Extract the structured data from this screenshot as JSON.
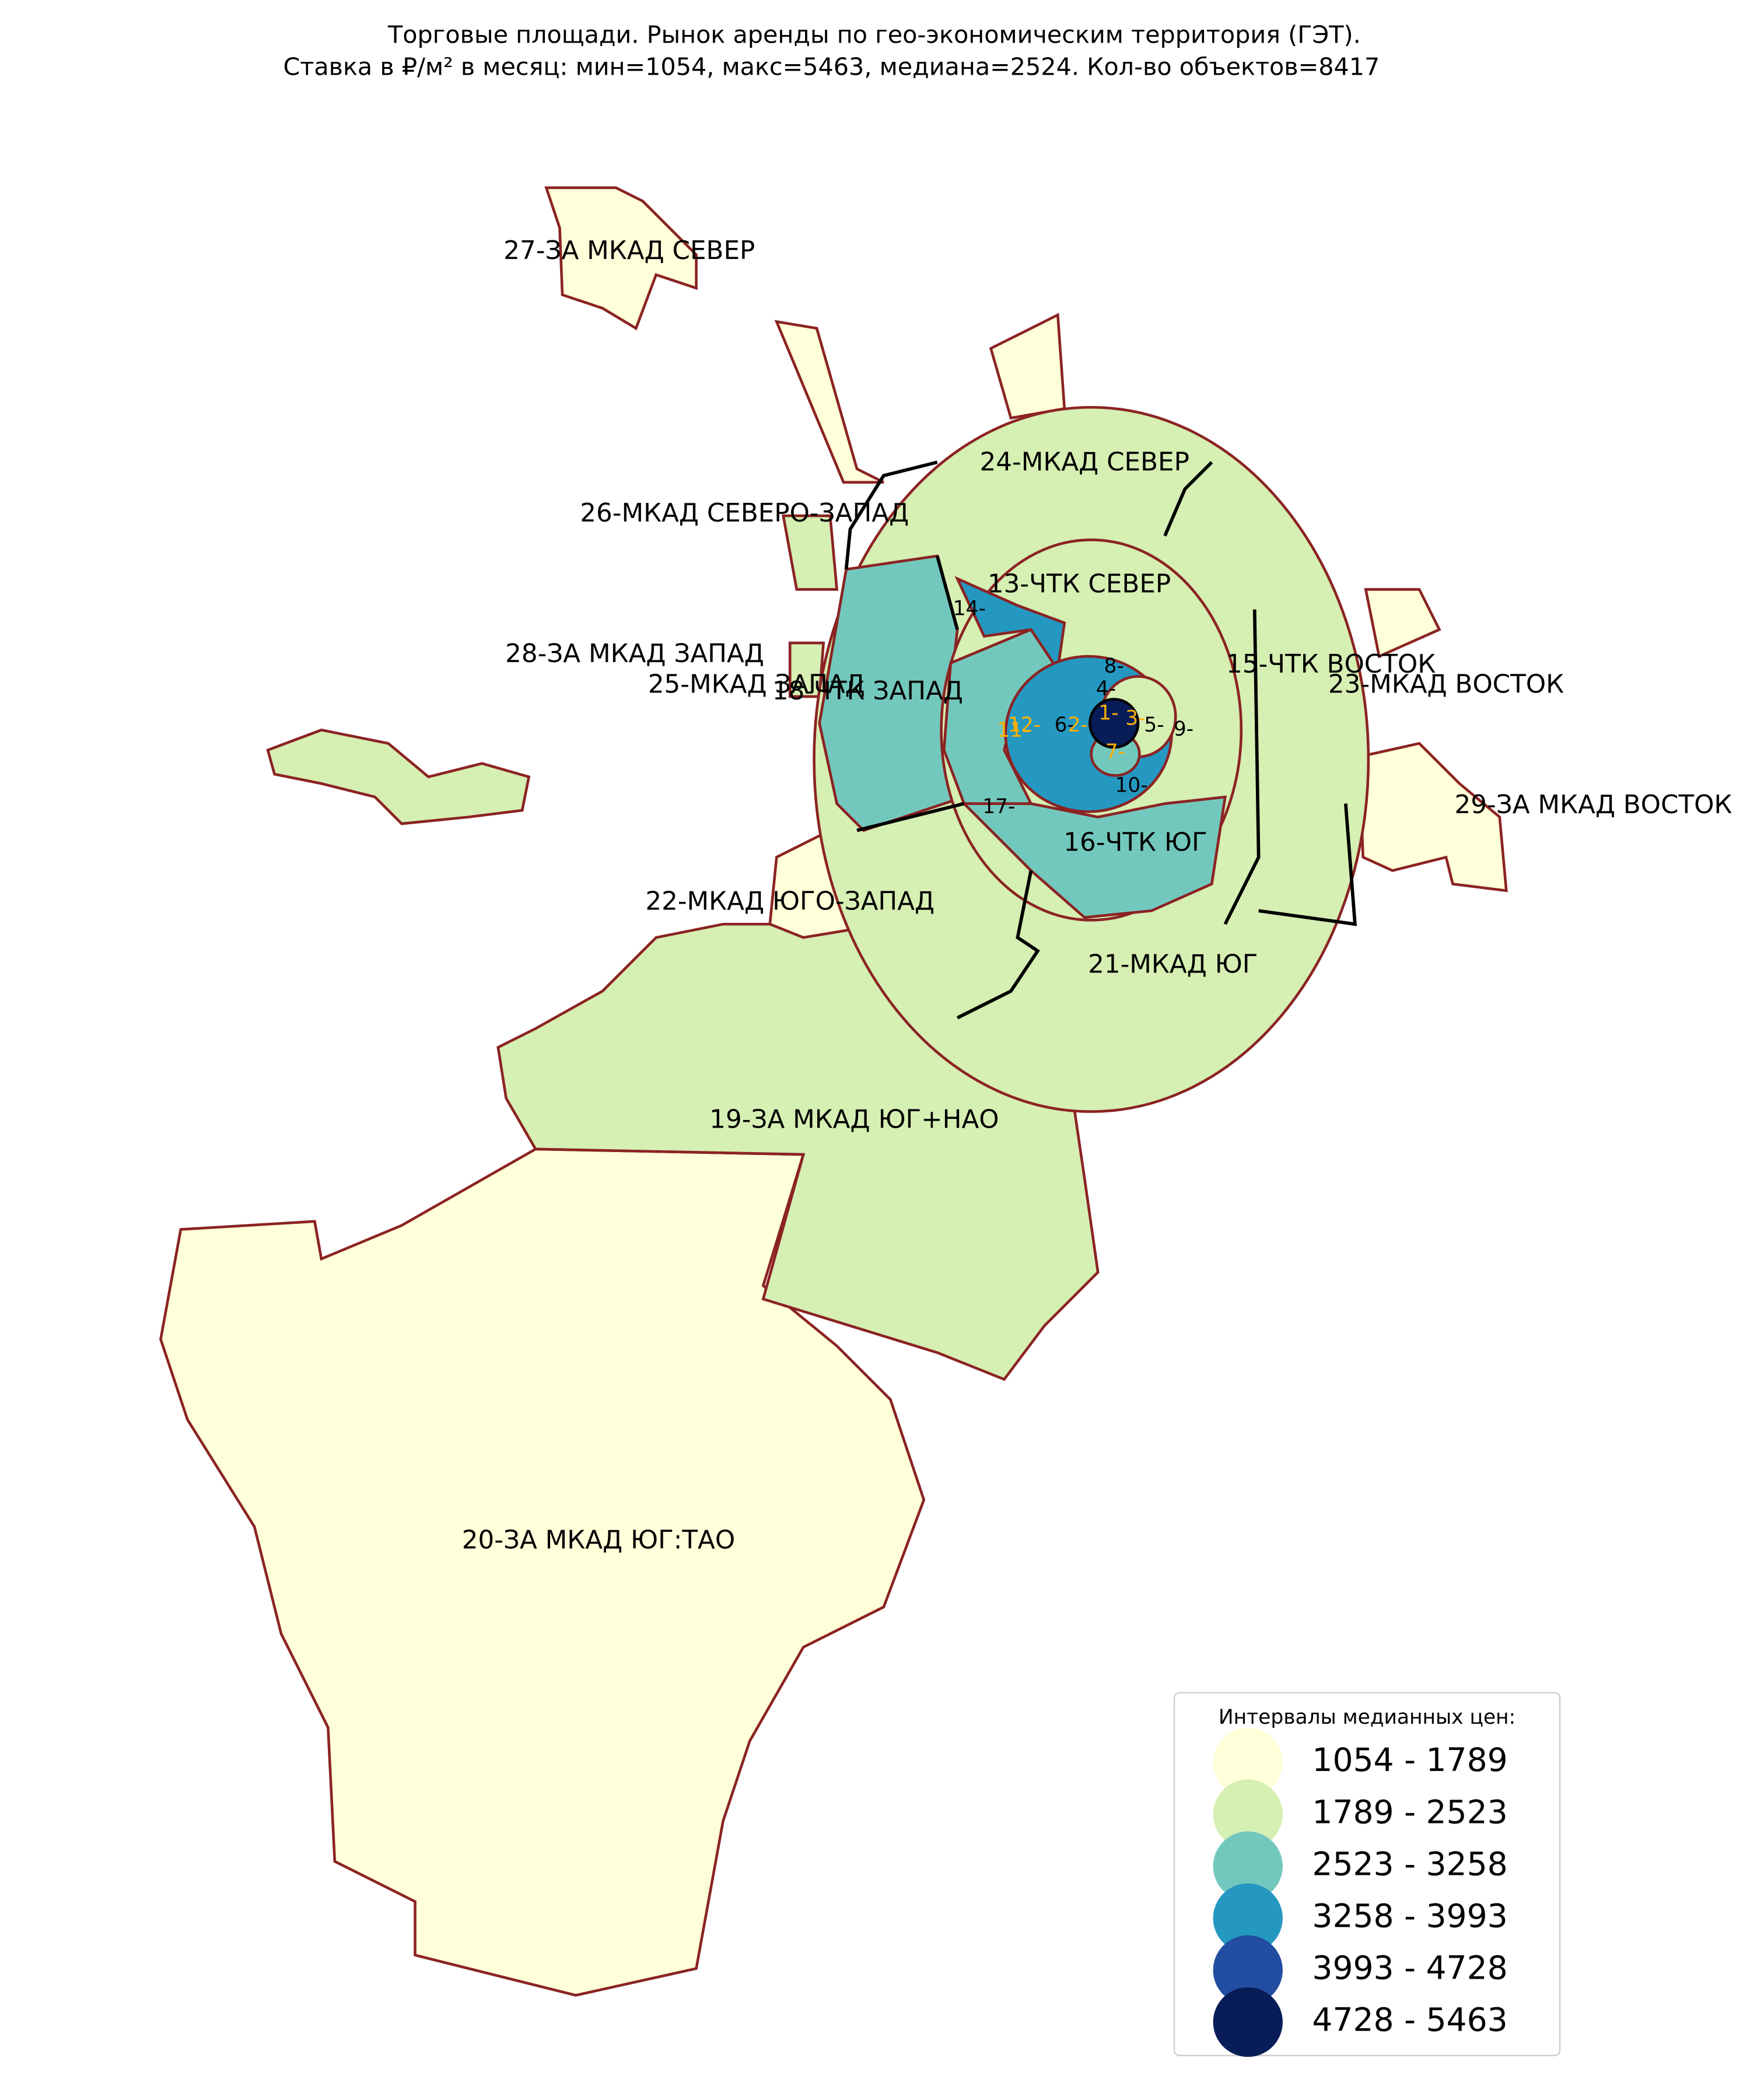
{
  "title": [
    "Торговые площади. Рынок аренды по гео-экономическим территория (ГЭТ).",
    "Ставка в ₽/м² в месяц: мин=1054, макс=5463, медиана=2524. Кол-во объектов=8417"
  ],
  "regions": [
    {
      "label": "27-ЗА МКАД СЕВЕР"
    },
    {
      "label": "24-МКАД СЕВЕР"
    },
    {
      "label": "26-МКАД СЕВЕРО-ЗАПАД"
    },
    {
      "label": "13-ЧТК СЕВЕР"
    },
    {
      "label": "14-"
    },
    {
      "label": "28-ЗА МКАД ЗАПАД"
    },
    {
      "label": "15-ЧТК ВОСТОК"
    },
    {
      "label": "25-МКАД ЗАПАД"
    },
    {
      "label": "18-ЧТК ЗАПАД"
    },
    {
      "label": "23-МКАД ВОСТОК"
    },
    {
      "label": "8-"
    },
    {
      "label": "4-"
    },
    {
      "label": "1-"
    },
    {
      "label": "3-"
    },
    {
      "label": "12-"
    },
    {
      "label": "6-"
    },
    {
      "label": "2-"
    },
    {
      "label": "11-"
    },
    {
      "label": "5-"
    },
    {
      "label": "9-"
    },
    {
      "label": "7-"
    },
    {
      "label": "10-"
    },
    {
      "label": "29-ЗА МКАД ВОСТОК"
    },
    {
      "label": "17-"
    },
    {
      "label": "16-ЧТК ЮГ"
    },
    {
      "label": "22-МКАД ЮГО-ЗАПАД"
    },
    {
      "label": "21-МКАД ЮГ"
    },
    {
      "label": "19-ЗА МКАД ЮГ+НАО"
    },
    {
      "label": "20-ЗА МКАД ЮГ:ТАО"
    }
  ],
  "legend": {
    "title": "Интервалы медианных цен:",
    "items": [
      {
        "label": "1054 - 1789",
        "color": "#ffffd9"
      },
      {
        "label": "1789 - 2523",
        "color": "#d6efb3"
      },
      {
        "label": "2523 - 3258",
        "color": "#73c8bd"
      },
      {
        "label": "3258 - 3993",
        "color": "#2498c1"
      },
      {
        "label": "3993 - 4728",
        "color": "#234da0"
      },
      {
        "label": "4728 - 5463",
        "color": "#081d58"
      }
    ]
  }
}
